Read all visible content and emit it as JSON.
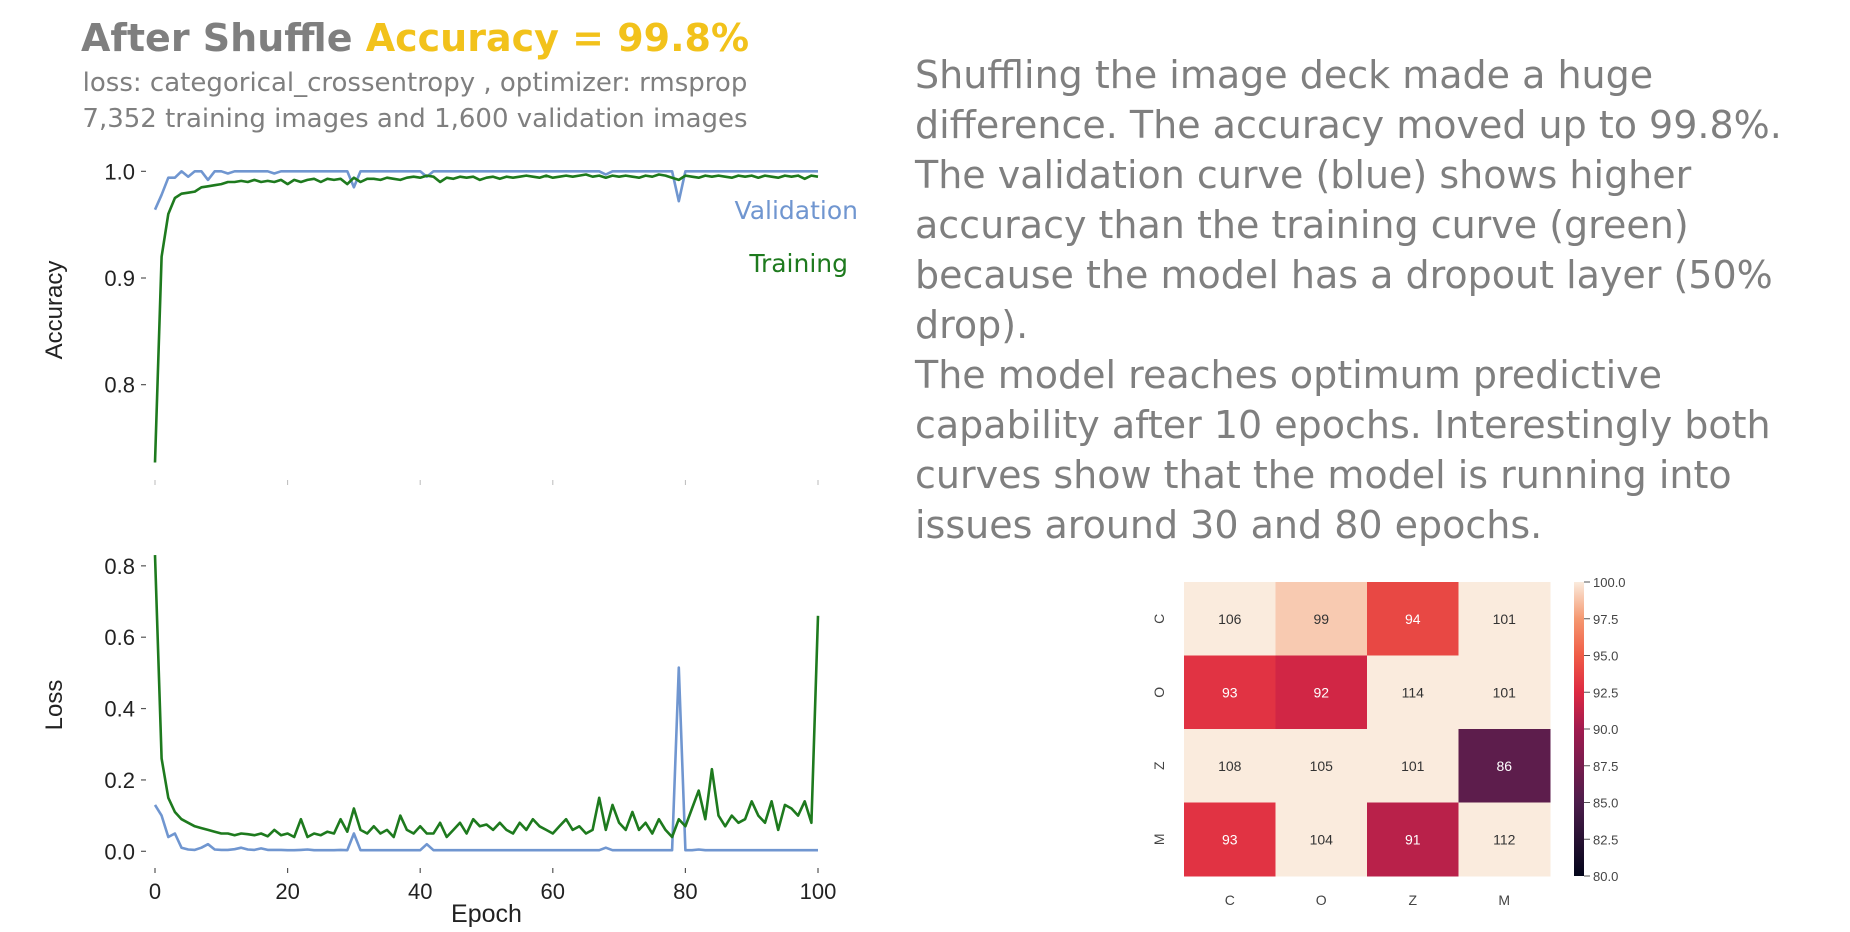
{
  "title": {
    "prefix": "After Shuffle",
    "accuracy": "Accuracy = 99.8%"
  },
  "subtitle_lines": [
    "loss: categorical_crossentropy  , optimizer: rmsprop",
    "7,352 training images and 1,600 validation images"
  ],
  "description": [
    "Shuffling the image deck made a huge difference. The accuracy moved up to 99.8%.",
    "The validation curve (blue) shows higher accuracy than the training curve (green) because the model has a dropout layer (50% drop).",
    "The model reaches optimum predictive capability after 10 epochs.  Interestingly both curves show that the model is running into issues around 30 and 80 epochs."
  ],
  "colors": {
    "validation": "#7096d0",
    "training": "#1e7a1e",
    "title_accent": "#f2c21b",
    "text_gray": "#7f7f7f"
  },
  "chart_data": [
    {
      "type": "line",
      "ylabel": "Accuracy",
      "xlim": [
        0,
        100
      ],
      "ylim": [
        0.72,
        1.02
      ],
      "yticks": [
        "0.8",
        "0.9",
        "1.0"
      ],
      "legend": [
        "Validation",
        "Training"
      ],
      "series": [
        {
          "name": "Validation",
          "values": [
            0.964,
            0.978,
            0.994,
            0.994,
            1.0,
            0.995,
            1.0,
            1.0,
            0.992,
            1.0,
            1.0,
            0.998,
            1.0,
            1.0,
            1.0,
            1.0,
            1.0,
            1.0,
            0.998,
            1.0,
            1.0,
            1.0,
            1.0,
            1.0,
            1.0,
            1.0,
            1.0,
            1.0,
            1.0,
            1.0,
            0.985,
            1.0,
            1.0,
            1.0,
            1.0,
            1.0,
            1.0,
            1.0,
            1.0,
            1.0,
            1.0,
            0.995,
            1.0,
            1.0,
            1.0,
            1.0,
            1.0,
            1.0,
            1.0,
            1.0,
            1.0,
            1.0,
            1.0,
            1.0,
            1.0,
            1.0,
            1.0,
            1.0,
            1.0,
            1.0,
            1.0,
            1.0,
            1.0,
            1.0,
            1.0,
            1.0,
            1.0,
            1.0,
            0.997,
            1.0,
            1.0,
            1.0,
            1.0,
            1.0,
            1.0,
            1.0,
            1.0,
            1.0,
            1.0,
            0.972,
            1.0,
            1.0,
            1.0,
            1.0,
            1.0,
            1.0,
            1.0,
            1.0,
            1.0,
            1.0,
            1.0,
            1.0,
            1.0,
            1.0,
            1.0,
            1.0,
            1.0,
            1.0,
            1.0,
            1.0,
            1.0
          ]
        },
        {
          "name": "Training",
          "values": [
            0.727,
            0.92,
            0.96,
            0.975,
            0.979,
            0.98,
            0.981,
            0.985,
            0.986,
            0.987,
            0.988,
            0.99,
            0.99,
            0.991,
            0.99,
            0.992,
            0.99,
            0.991,
            0.99,
            0.992,
            0.988,
            0.992,
            0.99,
            0.992,
            0.993,
            0.99,
            0.993,
            0.992,
            0.993,
            0.988,
            0.994,
            0.99,
            0.993,
            0.993,
            0.992,
            0.994,
            0.993,
            0.992,
            0.994,
            0.995,
            0.994,
            0.996,
            0.995,
            0.99,
            0.994,
            0.993,
            0.995,
            0.994,
            0.995,
            0.992,
            0.994,
            0.995,
            0.993,
            0.995,
            0.994,
            0.995,
            0.996,
            0.995,
            0.994,
            0.996,
            0.994,
            0.995,
            0.996,
            0.995,
            0.996,
            0.997,
            0.995,
            0.996,
            0.994,
            0.996,
            0.995,
            0.996,
            0.995,
            0.994,
            0.996,
            0.995,
            0.997,
            0.996,
            0.994,
            0.992,
            0.996,
            0.995,
            0.994,
            0.996,
            0.995,
            0.996,
            0.995,
            0.994,
            0.996,
            0.995,
            0.996,
            0.994,
            0.996,
            0.995,
            0.994,
            0.996,
            0.995,
            0.996,
            0.993,
            0.996,
            0.995
          ]
        }
      ]
    },
    {
      "type": "line",
      "xlabel": "Epoch",
      "ylabel": "Loss",
      "xlim": [
        0,
        100
      ],
      "ylim": [
        -0.03,
        0.85
      ],
      "xticks": [
        "0",
        "20",
        "40",
        "60",
        "80",
        "100"
      ],
      "yticks": [
        "0.0",
        "0.2",
        "0.4",
        "0.6",
        "0.8"
      ],
      "series": [
        {
          "name": "Validation",
          "values": [
            0.13,
            0.1,
            0.04,
            0.05,
            0.01,
            0.005,
            0.004,
            0.01,
            0.02,
            0.005,
            0.004,
            0.004,
            0.006,
            0.01,
            0.005,
            0.004,
            0.008,
            0.004,
            0.004,
            0.004,
            0.003,
            0.003,
            0.004,
            0.005,
            0.003,
            0.003,
            0.003,
            0.003,
            0.004,
            0.003,
            0.05,
            0.003,
            0.003,
            0.003,
            0.003,
            0.003,
            0.003,
            0.003,
            0.003,
            0.003,
            0.003,
            0.02,
            0.003,
            0.003,
            0.003,
            0.003,
            0.003,
            0.003,
            0.003,
            0.003,
            0.003,
            0.003,
            0.003,
            0.003,
            0.003,
            0.003,
            0.003,
            0.003,
            0.003,
            0.003,
            0.003,
            0.003,
            0.003,
            0.003,
            0.003,
            0.003,
            0.003,
            0.003,
            0.01,
            0.003,
            0.003,
            0.003,
            0.003,
            0.003,
            0.003,
            0.003,
            0.003,
            0.003,
            0.003,
            0.515,
            0.003,
            0.003,
            0.005,
            0.003,
            0.003,
            0.003,
            0.003,
            0.003,
            0.003,
            0.003,
            0.003,
            0.003,
            0.003,
            0.003,
            0.003,
            0.003,
            0.003,
            0.003,
            0.003,
            0.003,
            0.003
          ]
        },
        {
          "name": "Training",
          "values": [
            0.83,
            0.26,
            0.15,
            0.11,
            0.09,
            0.08,
            0.07,
            0.065,
            0.06,
            0.055,
            0.05,
            0.05,
            0.045,
            0.05,
            0.048,
            0.045,
            0.05,
            0.042,
            0.06,
            0.045,
            0.05,
            0.04,
            0.09,
            0.04,
            0.05,
            0.045,
            0.055,
            0.05,
            0.09,
            0.055,
            0.12,
            0.06,
            0.05,
            0.07,
            0.05,
            0.06,
            0.04,
            0.1,
            0.06,
            0.05,
            0.07,
            0.05,
            0.05,
            0.08,
            0.04,
            0.06,
            0.08,
            0.05,
            0.09,
            0.07,
            0.075,
            0.06,
            0.08,
            0.06,
            0.05,
            0.08,
            0.06,
            0.09,
            0.07,
            0.06,
            0.05,
            0.07,
            0.09,
            0.06,
            0.07,
            0.05,
            0.06,
            0.15,
            0.06,
            0.13,
            0.08,
            0.06,
            0.11,
            0.06,
            0.08,
            0.05,
            0.09,
            0.06,
            0.04,
            0.09,
            0.07,
            0.12,
            0.17,
            0.09,
            0.23,
            0.1,
            0.07,
            0.1,
            0.08,
            0.09,
            0.14,
            0.1,
            0.08,
            0.14,
            0.06,
            0.13,
            0.12,
            0.1,
            0.14,
            0.08,
            0.66
          ]
        }
      ]
    },
    {
      "type": "heatmap",
      "x_labels": [
        "C",
        "O",
        "Z",
        "M"
      ],
      "y_labels": [
        "C",
        "O",
        "Z",
        "M"
      ],
      "values": [
        [
          106,
          99,
          94,
          101
        ],
        [
          93,
          92,
          114,
          101
        ],
        [
          108,
          105,
          101,
          86
        ],
        [
          93,
          104,
          91,
          112
        ]
      ],
      "vmin": 80,
      "vmax": 100,
      "colorbar_ticks": [
        "80.0",
        "82.5",
        "85.0",
        "87.5",
        "90.0",
        "92.5",
        "95.0",
        "97.5",
        "100.0"
      ]
    }
  ]
}
